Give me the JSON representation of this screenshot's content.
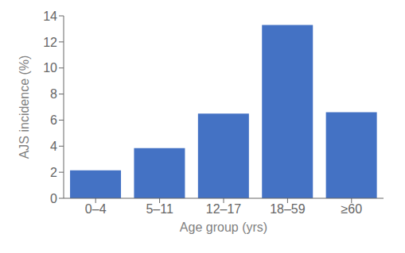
{
  "chart_data": {
    "type": "bar",
    "categories": [
      "0–4",
      "5–11",
      "12–17",
      "18–59",
      "≥60"
    ],
    "values": [
      2.15,
      3.85,
      6.5,
      13.3,
      6.6
    ],
    "color": "#4472C4",
    "xlabel": "Age group (yrs)",
    "ylabel": "AJS incidence (%)",
    "ylim": [
      0,
      14
    ],
    "yticks": [
      0,
      2,
      4,
      6,
      8,
      10,
      12,
      14
    ],
    "grid": false
  }
}
